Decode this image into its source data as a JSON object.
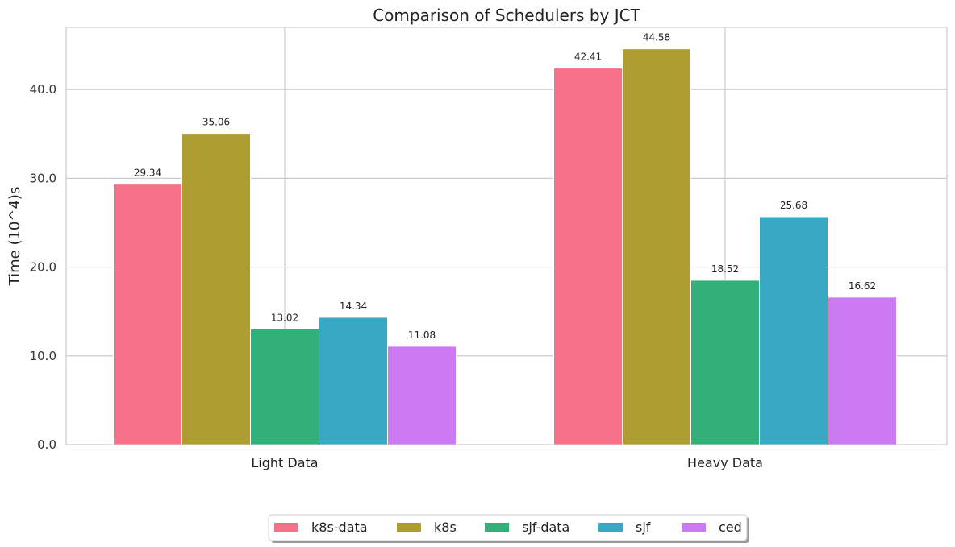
{
  "chart_data": {
    "type": "bar",
    "title": "Comparison of Schedulers by JCT",
    "xlabel": "",
    "ylabel": "Time (10^4)s",
    "ylim": [
      0,
      47
    ],
    "yticks": [
      0.0,
      10.0,
      20.0,
      30.0,
      40.0
    ],
    "ytick_labels": [
      "0.0",
      "10.0",
      "20.0",
      "30.0",
      "40.0"
    ],
    "grid": true,
    "legend_position": "bottom-center",
    "categories": [
      "Light Data",
      "Heavy Data"
    ],
    "series": [
      {
        "name": "k8s-data",
        "color": "#f77189",
        "values": [
          29.34,
          42.41
        ],
        "labels": [
          "29.34",
          "42.41"
        ]
      },
      {
        "name": "k8s",
        "color": "#ae9d31",
        "values": [
          35.06,
          44.58
        ],
        "labels": [
          "35.06",
          "44.58"
        ]
      },
      {
        "name": "sjf-data",
        "color": "#33b07a",
        "values": [
          13.02,
          18.52
        ],
        "labels": [
          "13.02",
          "18.52"
        ]
      },
      {
        "name": "sjf",
        "color": "#38a9c5",
        "values": [
          14.34,
          25.68
        ],
        "labels": [
          "14.34",
          "25.68"
        ]
      },
      {
        "name": "ced",
        "color": "#cc7af4",
        "values": [
          11.08,
          16.62
        ],
        "labels": [
          "11.08",
          "16.62"
        ]
      }
    ]
  }
}
